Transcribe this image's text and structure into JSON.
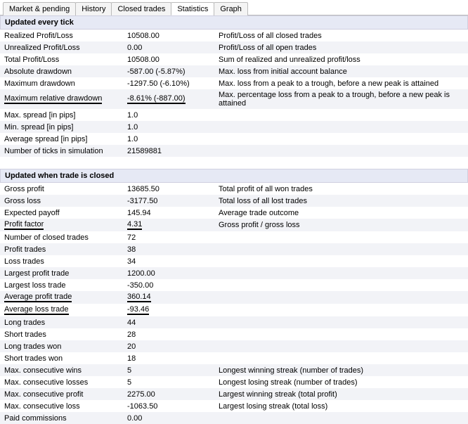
{
  "tabs": {
    "market_pending": "Market & pending",
    "history": "History",
    "closed_trades": "Closed trades",
    "statistics": "Statistics",
    "graph": "Graph",
    "active": "Statistics"
  },
  "section1": {
    "header": "Updated every tick",
    "rows": [
      {
        "label": "Realized Profit/Loss",
        "value": "10508.00",
        "desc": "Profit/Loss of all closed trades",
        "u": false
      },
      {
        "label": "Unrealized Profit/Loss",
        "value": "0.00",
        "desc": "Profit/Loss of all open trades",
        "u": false
      },
      {
        "label": "Total Profit/Loss",
        "value": "10508.00",
        "desc": "Sum of realized and unrealized profit/loss",
        "u": false
      },
      {
        "label": "Absolute drawdown",
        "value": "-587.00 (-5.87%)",
        "desc": "Max. loss from initial account balance",
        "u": false
      },
      {
        "label": "Maximum drawdown",
        "value": "-1297.50 (-6.10%)",
        "desc": "Max. loss from a peak to a trough, before a new peak is attained",
        "u": false
      },
      {
        "label": "Maximum relative drawdown",
        "value": "-8.61% (-887.00)",
        "desc": "Max. percentage loss from a peak to a trough, before a new peak is attained",
        "u": true
      },
      {
        "label": "Max. spread [in pips]",
        "value": "1.0",
        "desc": "",
        "u": false
      },
      {
        "label": "Min. spread [in pips]",
        "value": "1.0",
        "desc": "",
        "u": false
      },
      {
        "label": "Average spread [in pips]",
        "value": "1.0",
        "desc": "",
        "u": false
      },
      {
        "label": "Number of ticks in simulation",
        "value": "21589881",
        "desc": "",
        "u": false
      }
    ]
  },
  "section2": {
    "header": "Updated when trade is closed",
    "rows": [
      {
        "label": "Gross profit",
        "value": "13685.50",
        "desc": "Total profit of all won trades",
        "u": false
      },
      {
        "label": "Gross loss",
        "value": "-3177.50",
        "desc": "Total loss of all lost trades",
        "u": false
      },
      {
        "label": "Expected payoff",
        "value": "145.94",
        "desc": "Average trade outcome",
        "u": false
      },
      {
        "label": "Profit factor",
        "value": "4.31",
        "desc": "Gross profit / gross loss",
        "u": true
      },
      {
        "label": "Number of closed trades",
        "value": "72",
        "desc": "",
        "u": false
      },
      {
        "label": "Profit trades",
        "value": "38",
        "desc": "",
        "u": false
      },
      {
        "label": "Loss trades",
        "value": "34",
        "desc": "",
        "u": false
      },
      {
        "label": "Largest profit trade",
        "value": "1200.00",
        "desc": "",
        "u": false
      },
      {
        "label": "Largest loss trade",
        "value": "-350.00",
        "desc": "",
        "u": false
      },
      {
        "label": "Average profit trade",
        "value": "360.14",
        "desc": "",
        "u": true
      },
      {
        "label": "Average loss trade",
        "value": "-93.46",
        "desc": "",
        "u": true
      },
      {
        "label": "Long trades",
        "value": "44",
        "desc": "",
        "u": false
      },
      {
        "label": "Short trades",
        "value": "28",
        "desc": "",
        "u": false
      },
      {
        "label": "Long trades won",
        "value": "20",
        "desc": "",
        "u": false
      },
      {
        "label": "Short trades won",
        "value": "18",
        "desc": "",
        "u": false
      },
      {
        "label": "Max. consecutive wins",
        "value": "5",
        "desc": "Longest winning streak (number of trades)",
        "u": false
      },
      {
        "label": "Max. consecutive losses",
        "value": "5",
        "desc": "Longest losing streak (number of trades)",
        "u": false
      },
      {
        "label": "Max. consecutive profit",
        "value": "2275.00",
        "desc": "Largest winning streak (total profit)",
        "u": false
      },
      {
        "label": "Max. consecutive loss",
        "value": "-1063.50",
        "desc": "Largest losing streak (total loss)",
        "u": false
      },
      {
        "label": "Paid commissions",
        "value": "0.00",
        "desc": "",
        "u": false
      }
    ]
  },
  "colors": {
    "section_header_bg": "#e6e9f5",
    "alt_row_bg": "#f2f3f7",
    "border": "#bbb"
  }
}
